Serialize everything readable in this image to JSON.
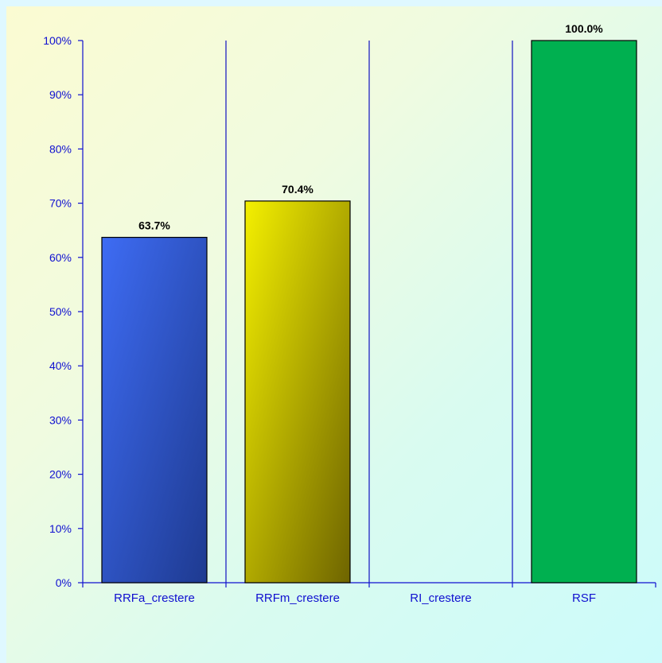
{
  "chart_data": {
    "type": "bar",
    "categories": [
      "RRFa_crestere",
      "RRFm_crestere",
      "RI_crestere",
      "RSF"
    ],
    "values": [
      63.7,
      70.4,
      0,
      100.0
    ],
    "data_labels": [
      "63.7%",
      "70.4%",
      "",
      "100.0%"
    ],
    "y_ticks": [
      "0%",
      "10%",
      "20%",
      "30%",
      "40%",
      "50%",
      "60%",
      "70%",
      "80%",
      "90%",
      "100%"
    ],
    "ylim": [
      0,
      100
    ],
    "grid": false,
    "legend": "none",
    "colors": {
      "bars": [
        "#3e6cf4",
        "#f4f000",
        "#ffffff",
        "#00b050"
      ],
      "bars_dark": [
        "#1e3a90",
        "#6e6400",
        "#ffffff",
        "#00a048"
      ],
      "axis": "#1010d0",
      "separators": "#1010c0",
      "text": "#1010d0"
    }
  }
}
